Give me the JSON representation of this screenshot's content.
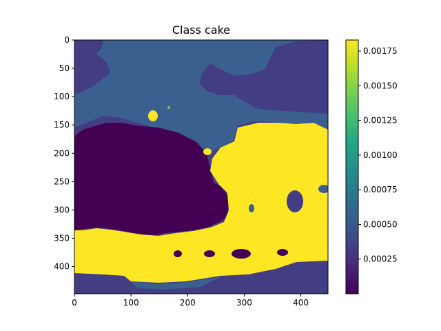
{
  "chart_data": {
    "type": "heatmap",
    "title": "Class cake",
    "xlabel": "",
    "ylabel": "",
    "x_ticks": [
      0,
      100,
      200,
      300,
      400
    ],
    "y_ticks": [
      0,
      50,
      100,
      150,
      200,
      250,
      300,
      350,
      400
    ],
    "extent": [
      0,
      448,
      0,
      448
    ],
    "colormap": "viridis",
    "colorbar": {
      "range": [
        0.0,
        0.00183
      ],
      "ticks": [
        0.00025,
        0.0005,
        0.00075,
        0.001,
        0.00125,
        0.0015,
        0.00175
      ],
      "tick_labels": [
        "0.00025",
        "0.00050",
        "0.00075",
        "0.00100",
        "0.00125",
        "0.00150",
        "0.00175"
      ]
    },
    "levels": {
      "low": 0.0,
      "mid_low": 0.00022,
      "mid": 0.0006,
      "high": 0.00183
    },
    "colors": {
      "low": "#440154",
      "mid_low": "#433d84",
      "mid": "#3b5f8e",
      "high": "#fde725",
      "accent": "#6ece58"
    }
  }
}
